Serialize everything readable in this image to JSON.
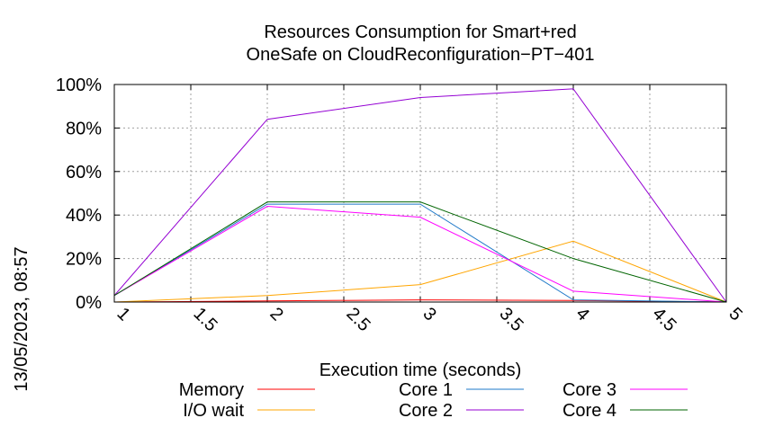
{
  "chart_data": {
    "type": "line",
    "title_line1": "Resources Consumption for Smart+red",
    "title_line2": "OneSafe on CloudReconfiguration−PT−401",
    "xlabel": "Execution time (seconds)",
    "timestamp": "13/05/2023, 08:57",
    "xlim": [
      1,
      5
    ],
    "ylim": [
      0,
      100
    ],
    "x_ticks": [
      "1",
      "1.5",
      "2",
      "2.5",
      "3",
      "3.5",
      "4",
      "4.5",
      "5"
    ],
    "y_ticks": [
      "0%",
      "20%",
      "40%",
      "60%",
      "80%",
      "100%"
    ],
    "grid": true,
    "legend_position": "bottom",
    "x": [
      1,
      2,
      3,
      4,
      5
    ],
    "series": [
      {
        "name": "Memory",
        "color": "#ff0000",
        "values": [
          0,
          0.5,
          1,
          0.7,
          0
        ]
      },
      {
        "name": "I/O wait",
        "color": "#ffa500",
        "values": [
          0,
          3,
          8,
          28,
          0
        ]
      },
      {
        "name": "Core 1",
        "color": "#1e78c8",
        "values": [
          3,
          45,
          45,
          1,
          0
        ]
      },
      {
        "name": "Core 2",
        "color": "#9400d3",
        "values": [
          3,
          84,
          94,
          98,
          0
        ]
      },
      {
        "name": "Core 3",
        "color": "#ff00ff",
        "values": [
          3,
          44,
          39,
          5,
          0
        ]
      },
      {
        "name": "Core 4",
        "color": "#006400",
        "values": [
          3,
          46,
          46,
          20,
          0
        ]
      }
    ]
  }
}
